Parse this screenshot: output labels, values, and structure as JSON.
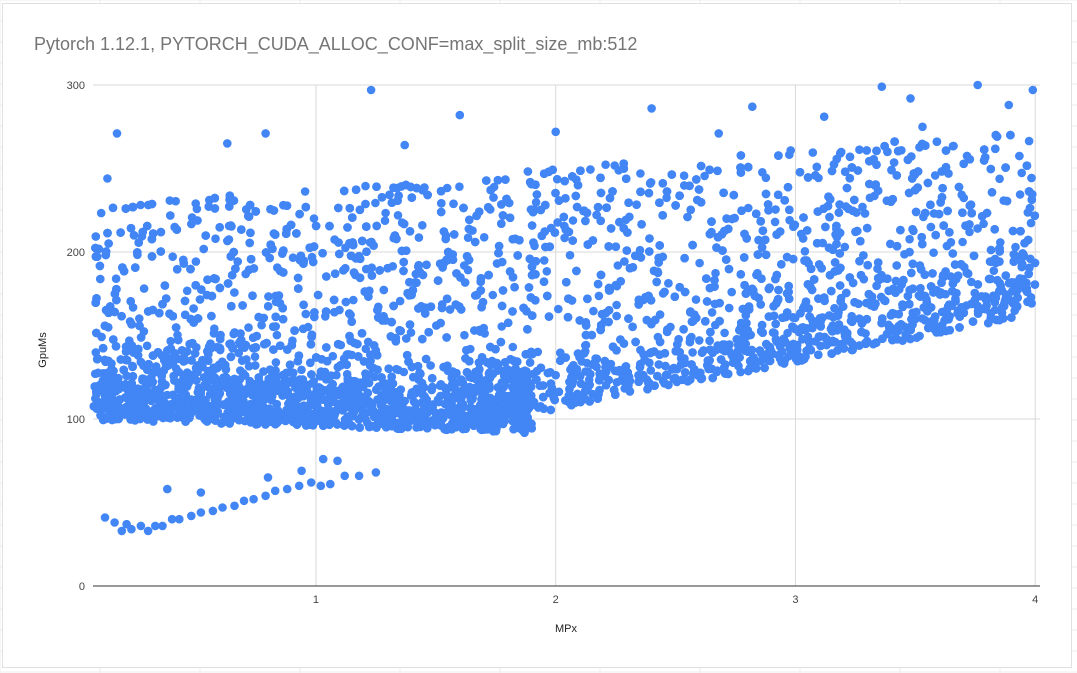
{
  "chart_data": {
    "type": "scatter",
    "title": "Pytorch 1.12.1, PYTORCH_CUDA_ALLOC_CONF=max_split_size_mb:512",
    "xlabel": "MPx",
    "ylabel": "GpuMs",
    "xlim": [
      0.07,
      4.02
    ],
    "ylim": [
      0,
      300
    ],
    "x_ticks": [
      "1",
      "2",
      "3",
      "4"
    ],
    "y_ticks": [
      "0",
      "100",
      "200",
      "300"
    ],
    "grid": true,
    "legend": "none",
    "point_color": "#4285f4",
    "bands": [
      {
        "name": "low-cluster",
        "x_range": [
          0.07,
          1.9
        ],
        "y_at_start": 108,
        "y_at_end": 100,
        "spread": 24,
        "density": 0.42
      },
      {
        "name": "rising-band",
        "x_range": [
          1.6,
          4.0
        ],
        "y_at_start": 100,
        "y_at_end": 168,
        "spread": 22,
        "density": 0.25
      },
      {
        "name": "upper-scatter",
        "x_range": [
          0.07,
          4.0
        ],
        "y_at_start": 180,
        "y_at_end": 225,
        "spread": 48,
        "density": 0.33
      },
      {
        "name": "bottom-line",
        "x_range": [
          0.1,
          1.3
        ],
        "y_at_start": 35,
        "y_at_end": 68,
        "spread": 4,
        "density": 0.0
      }
    ],
    "bottom_line_points": [
      [
        0.12,
        41
      ],
      [
        0.16,
        38
      ],
      [
        0.19,
        33
      ],
      [
        0.21,
        37
      ],
      [
        0.23,
        34
      ],
      [
        0.27,
        36
      ],
      [
        0.3,
        33
      ],
      [
        0.33,
        36
      ],
      [
        0.36,
        36
      ],
      [
        0.4,
        40
      ],
      [
        0.43,
        40
      ],
      [
        0.48,
        42
      ],
      [
        0.52,
        44
      ],
      [
        0.57,
        45
      ],
      [
        0.61,
        47
      ],
      [
        0.66,
        48
      ],
      [
        0.7,
        51
      ],
      [
        0.74,
        52
      ],
      [
        0.79,
        54
      ],
      [
        0.83,
        57
      ],
      [
        0.88,
        58
      ],
      [
        0.93,
        60
      ],
      [
        0.98,
        62
      ],
      [
        1.02,
        60
      ],
      [
        1.06,
        61
      ],
      [
        1.12,
        66
      ],
      [
        1.18,
        66
      ],
      [
        1.25,
        68
      ],
      [
        0.38,
        58
      ],
      [
        0.52,
        56
      ],
      [
        0.8,
        65
      ],
      [
        0.94,
        69
      ],
      [
        1.03,
        76
      ],
      [
        1.09,
        75
      ]
    ],
    "outlier_points": [
      [
        1.23,
        297
      ],
      [
        1.6,
        282
      ],
      [
        2.4,
        286
      ],
      [
        3.36,
        299
      ],
      [
        3.76,
        300
      ],
      [
        3.99,
        297
      ],
      [
        0.17,
        271
      ],
      [
        0.79,
        271
      ],
      [
        2.82,
        287
      ],
      [
        1.37,
        264
      ],
      [
        2.0,
        272
      ],
      [
        0.13,
        244
      ],
      [
        0.63,
        265
      ],
      [
        3.48,
        292
      ],
      [
        3.53,
        275
      ],
      [
        2.68,
        271
      ],
      [
        3.12,
        281
      ],
      [
        3.89,
        288
      ]
    ]
  }
}
